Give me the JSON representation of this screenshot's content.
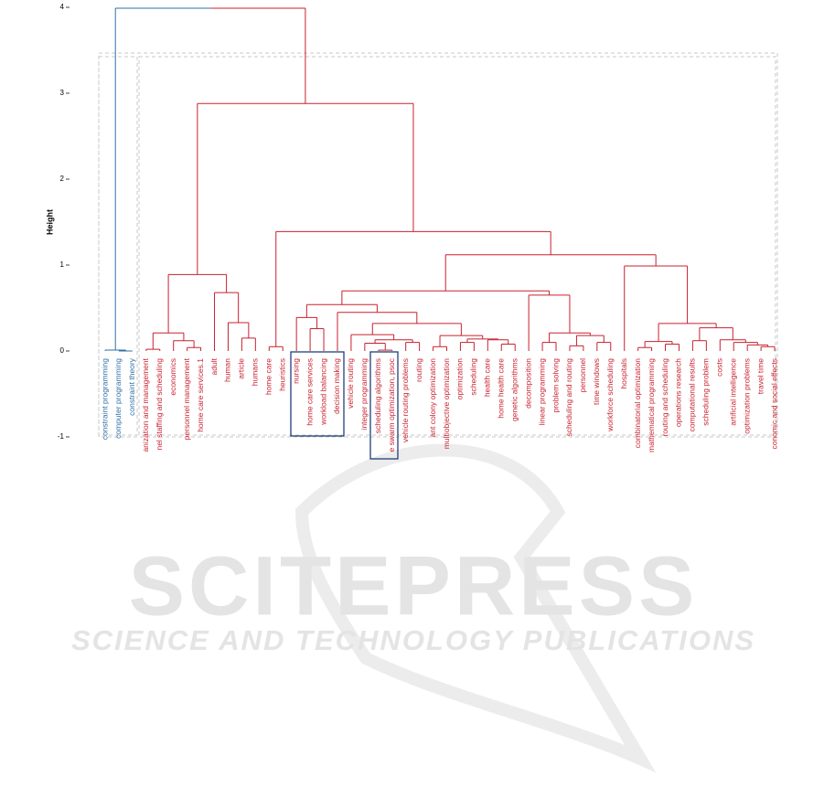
{
  "chart_data": {
    "type": "dendrogram",
    "y_label": "Height",
    "ylim": [
      -1,
      4
    ],
    "yticks": [
      -1,
      0,
      1,
      2,
      3,
      4
    ],
    "tree": {
      "height": 3.99,
      "children": [
        {
          "height": 0.01,
          "color": "#2f6fa8",
          "children": [
            {
              "label": "constraint programming"
            },
            {
              "height": 0.0,
              "children": [
                {
                  "label": "computer programming"
                },
                {
                  "label": "constraint theory"
                }
              ]
            }
          ]
        },
        {
          "height": 2.88,
          "color": "#c8202f",
          "children": [
            {
              "height": 0.89,
              "children": [
                {
                  "height": 0.21,
                  "children": [
                    {
                      "height": 0.02,
                      "children": [
                        {
                          "label": "anization and management"
                        },
                        {
                          "label": "nel staffing and scheduling"
                        }
                      ]
                    },
                    {
                      "height": 0.12,
                      "children": [
                        {
                          "label": "economics"
                        },
                        {
                          "height": 0.04,
                          "children": [
                            {
                              "label": "personnel management"
                            },
                            {
                              "label": "home care services.1"
                            }
                          ]
                        }
                      ]
                    }
                  ]
                },
                {
                  "height": 0.68,
                  "children": [
                    {
                      "label": "adult"
                    },
                    {
                      "height": 0.33,
                      "children": [
                        {
                          "label": "human"
                        },
                        {
                          "height": 0.15,
                          "children": [
                            {
                              "label": "article"
                            },
                            {
                              "label": "humans"
                            }
                          ]
                        }
                      ]
                    }
                  ]
                }
              ]
            },
            {
              "height": 1.39,
              "children": [
                {
                  "height": 0.05,
                  "children": [
                    {
                      "label": "home care"
                    },
                    {
                      "label": "heuristics"
                    }
                  ]
                },
                {
                  "height": 1.12,
                  "children": [
                    {
                      "height": 0.7,
                      "children": [
                        {
                          "height": 0.54,
                          "children": [
                            {
                              "height": 0.39,
                              "children": [
                                {
                                  "label": "nursing"
                                },
                                {
                                  "height": 0.26,
                                  "children": [
                                    {
                                      "label": "home care services"
                                    },
                                    {
                                      "label": "workload balancing"
                                    }
                                  ]
                                }
                              ]
                            },
                            {
                              "height": 0.45,
                              "children": [
                                {
                                  "label": "decision making"
                                },
                                {
                                  "height": 0.32,
                                  "children": [
                                    {
                                      "height": 0.19,
                                      "children": [
                                        {
                                          "label": "vehicle routing"
                                        },
                                        {
                                          "height": 0.13,
                                          "children": [
                                            {
                                              "height": 0.09,
                                              "children": [
                                                {
                                                  "label": "integer programming"
                                                },
                                                {
                                                  "height": 0.01,
                                                  "children": [
                                                    {
                                                      "label": "scheduling algorithms"
                                                    },
                                                    {
                                                      "label": "e swarm optimization, psoc"
                                                    }
                                                  ]
                                                }
                                              ]
                                            },
                                            {
                                              "height": 0.1,
                                              "children": [
                                                {
                                                  "label": "vehicle routing problems"
                                                },
                                                {
                                                  "label": "routing"
                                                }
                                              ]
                                            }
                                          ]
                                        }
                                      ]
                                    },
                                    {
                                      "height": 0.18,
                                      "children": [
                                        {
                                          "height": 0.05,
                                          "children": [
                                            {
                                              "label": "ant colony optimization"
                                            },
                                            {
                                              "label": "multiobjective optimization"
                                            }
                                          ]
                                        },
                                        {
                                          "height": 0.14,
                                          "children": [
                                            {
                                              "height": 0.1,
                                              "children": [
                                                {
                                                  "label": "optimization"
                                                },
                                                {
                                                  "label": "scheduling"
                                                }
                                              ]
                                            },
                                            {
                                              "height": 0.13,
                                              "children": [
                                                {
                                                  "label": "health care"
                                                },
                                                {
                                                  "height": 0.08,
                                                  "children": [
                                                    {
                                                      "label": "home health care"
                                                    },
                                                    {
                                                      "label": "genetic algorithms"
                                                    }
                                                  ]
                                                }
                                              ]
                                            }
                                          ]
                                        }
                                      ]
                                    }
                                  ]
                                }
                              ]
                            }
                          ]
                        },
                        {
                          "height": 0.65,
                          "children": [
                            {
                              "label": "decomposition"
                            },
                            {
                              "height": 0.21,
                              "children": [
                                {
                                  "height": 0.1,
                                  "children": [
                                    {
                                      "label": "linear programming"
                                    },
                                    {
                                      "label": "problem solving"
                                    }
                                  ]
                                },
                                {
                                  "height": 0.18,
                                  "children": [
                                    {
                                      "height": 0.06,
                                      "children": [
                                        {
                                          "label": "scheduling and routing"
                                        },
                                        {
                                          "label": "personnel"
                                        }
                                      ]
                                    },
                                    {
                                      "height": 0.1,
                                      "children": [
                                        {
                                          "label": "time windows"
                                        },
                                        {
                                          "label": "workforce scheduling"
                                        }
                                      ]
                                    }
                                  ]
                                }
                              ]
                            }
                          ]
                        }
                      ]
                    },
                    {
                      "height": 0.99,
                      "children": [
                        {
                          "label": "hospitals"
                        },
                        {
                          "height": 0.32,
                          "children": [
                            {
                              "height": 0.11,
                              "children": [
                                {
                                  "height": 0.04,
                                  "children": [
                                    {
                                      "label": "combinatorial optimization"
                                    },
                                    {
                                      "label": "mathematical programming"
                                    }
                                  ]
                                },
                                {
                                  "height": 0.08,
                                  "children": [
                                    {
                                      "label": "routing and scheduling"
                                    },
                                    {
                                      "label": "operations research"
                                    }
                                  ]
                                }
                              ]
                            },
                            {
                              "height": 0.27,
                              "children": [
                                {
                                  "height": 0.12,
                                  "children": [
                                    {
                                      "label": "computational results"
                                    },
                                    {
                                      "label": "scheduling problem"
                                    }
                                  ]
                                },
                                {
                                  "height": 0.13,
                                  "children": [
                                    {
                                      "label": "costs"
                                    },
                                    {
                                      "height": 0.1,
                                      "children": [
                                        {
                                          "label": "artificial intelligence"
                                        },
                                        {
                                          "height": 0.07,
                                          "children": [
                                            {
                                              "label": "optimization problems"
                                            },
                                            {
                                              "height": 0.05,
                                              "children": [
                                                {
                                                  "label": "travel time"
                                                },
                                                {
                                                  "label": "conomic and social effects"
                                                }
                                              ]
                                            }
                                          ]
                                        }
                                      ]
                                    }
                                  ]
                                }
                              ]
                            }
                          ]
                        }
                      ]
                    }
                  ]
                }
              ]
            }
          ]
        }
      ]
    }
  },
  "watermark": {
    "title": "SCITEPRESS",
    "subtitle": "SCIENCE AND TECHNOLOGY PUBLICATIONS"
  }
}
